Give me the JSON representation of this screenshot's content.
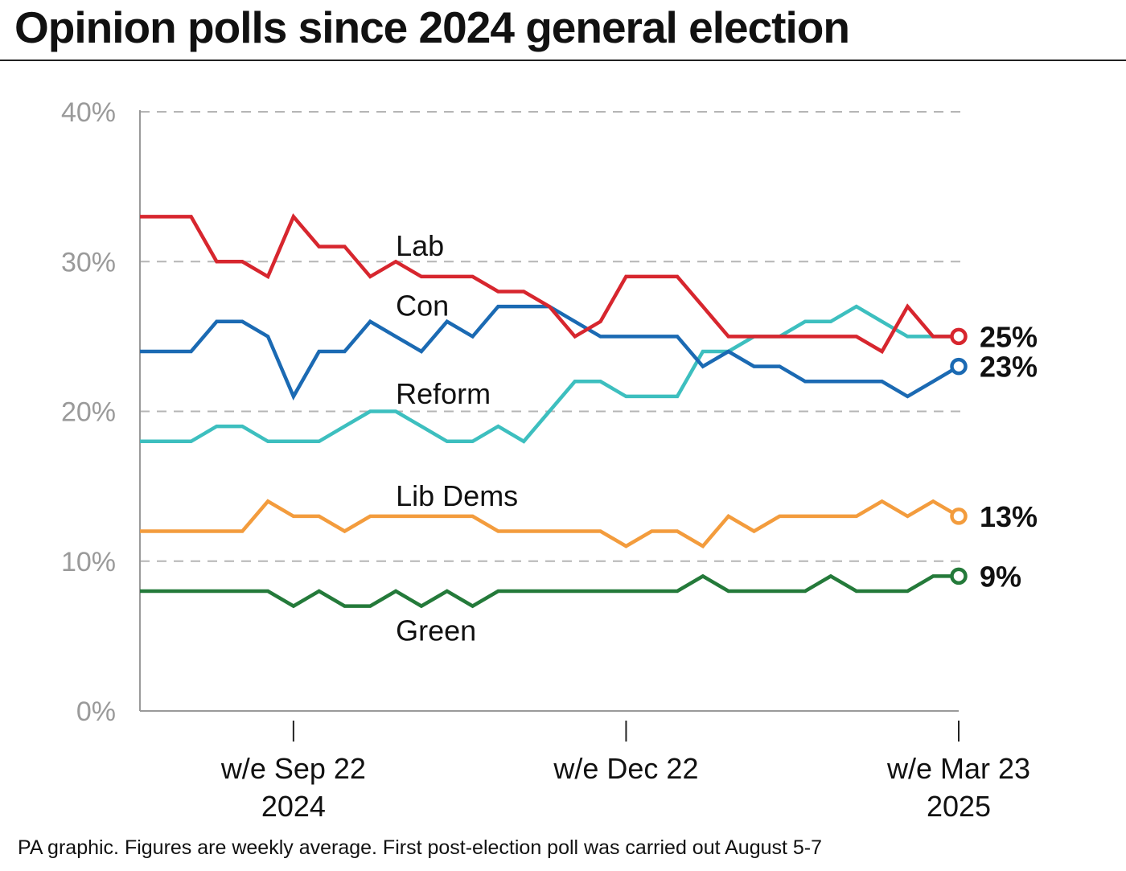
{
  "title": "Opinion polls since 2024 general election",
  "footer": "PA graphic. Figures are weekly average. First post-election poll was carried out August 5-7",
  "chart_data": {
    "type": "line",
    "title": "Opinion polls since 2024 general election",
    "xlabel": "",
    "ylabel": "",
    "ylim": [
      0,
      40
    ],
    "yticks": [
      0,
      10,
      20,
      30,
      40
    ],
    "ytick_labels": [
      "0%",
      "10%",
      "20%",
      "30%",
      "40%"
    ],
    "grid": "horizontal dashed",
    "legend": "inline labels",
    "x": [
      "w/e Aug 11 2024",
      "w/e Aug 18 2024",
      "w/e Aug 25 2024",
      "w/e Sep 1 2024",
      "w/e Sep 8 2024",
      "w/e Sep 15 2024",
      "w/e Sep 22 2024",
      "w/e Sep 29 2024",
      "w/e Oct 6 2024",
      "w/e Oct 13 2024",
      "w/e Oct 20 2024",
      "w/e Oct 27 2024",
      "w/e Nov 3 2024",
      "w/e Nov 10 2024",
      "w/e Nov 17 2024",
      "w/e Nov 24 2024",
      "w/e Dec 1 2024",
      "w/e Dec 8 2024",
      "w/e Dec 15 2024",
      "w/e Dec 22 2024",
      "w/e Dec 29 2024",
      "w/e Jan 5 2025",
      "w/e Jan 12 2025",
      "w/e Jan 19 2025",
      "w/e Jan 26 2025",
      "w/e Feb 2 2025",
      "w/e Feb 9 2025",
      "w/e Feb 16 2025",
      "w/e Feb 23 2025",
      "w/e Mar 2 2025",
      "w/e Mar 9 2025",
      "w/e Mar 16 2025",
      "w/e Mar 23 2025"
    ],
    "xticks": [
      {
        "index": 6,
        "line1": "w/e Sep 22",
        "line2": "2024"
      },
      {
        "index": 19,
        "line1": "w/e Dec 22",
        "line2": ""
      },
      {
        "index": 32,
        "line1": "w/e Mar 23",
        "line2": "2025"
      }
    ],
    "series": [
      {
        "name": "Lab",
        "color": "#d7262e",
        "end_label": "25%",
        "label_pos": {
          "index": 10,
          "value": 30.4
        },
        "values": [
          33,
          33,
          33,
          30,
          30,
          29,
          33,
          31,
          31,
          29,
          30,
          29,
          29,
          29,
          28,
          28,
          27,
          25,
          26,
          29,
          29,
          29,
          27,
          25,
          25,
          25,
          25,
          25,
          25,
          24,
          27,
          25,
          25
        ]
      },
      {
        "name": "Con",
        "color": "#1b6ab3",
        "end_label": "23%",
        "label_pos": {
          "index": 10,
          "value": 26.4
        },
        "values": [
          24,
          24,
          24,
          26,
          26,
          25,
          21,
          24,
          24,
          26,
          25,
          24,
          26,
          25,
          27,
          27,
          27,
          26,
          25,
          25,
          25,
          25,
          23,
          24,
          23,
          23,
          22,
          22,
          22,
          22,
          21,
          22,
          23
        ]
      },
      {
        "name": "Reform",
        "color": "#3dbfbf",
        "end_label": "",
        "label_pos": {
          "index": 10,
          "value": 20.5
        },
        "values": [
          18,
          18,
          18,
          19,
          19,
          18,
          18,
          18,
          19,
          20,
          20,
          19,
          18,
          18,
          19,
          18,
          20,
          22,
          22,
          21,
          21,
          21,
          24,
          24,
          25,
          25,
          26,
          26,
          27,
          26,
          25,
          25,
          25
        ]
      },
      {
        "name": "Lib Dems",
        "color": "#f39c3d",
        "end_label": "13%",
        "label_pos": {
          "index": 10,
          "value": 13.7
        },
        "values": [
          12,
          12,
          12,
          12,
          12,
          14,
          13,
          13,
          12,
          13,
          13,
          13,
          13,
          13,
          12,
          12,
          12,
          12,
          12,
          11,
          12,
          12,
          11,
          13,
          12,
          13,
          13,
          13,
          13,
          14,
          13,
          14,
          13
        ]
      },
      {
        "name": "Green",
        "color": "#247a3a",
        "end_label": "9%",
        "label_pos": {
          "index": 10,
          "value": 4.7
        },
        "values": [
          8,
          8,
          8,
          8,
          8,
          8,
          7,
          8,
          7,
          7,
          8,
          7,
          8,
          7,
          8,
          8,
          8,
          8,
          8,
          8,
          8,
          8,
          9,
          8,
          8,
          8,
          8,
          9,
          8,
          8,
          8,
          9,
          9
        ]
      }
    ]
  }
}
